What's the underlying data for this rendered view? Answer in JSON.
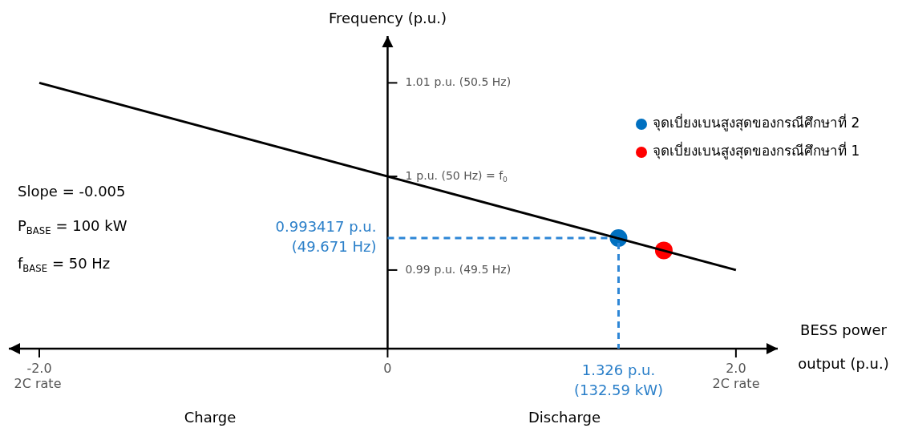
{
  "chart_data": {
    "type": "line",
    "xlabel": "BESS power output (p.u.)",
    "ylabel": "Frequency (p.u.)",
    "xlim": [
      -2.175,
      2.24
    ],
    "ylim": [
      0.9816,
      1.015
    ],
    "xticks": [
      {
        "value": -2,
        "label": "-2.0"
      },
      0,
      {
        "value": 2,
        "label": "2.0"
      }
    ],
    "yticks": [
      0.99,
      1,
      1.01
    ],
    "legend": "top right",
    "series": [
      {
        "color": "#000000",
        "x": [
          -2,
          2
        ],
        "values": [
          1.01,
          0.99
        ],
        "marker": "none",
        "line_style": "solid"
      },
      {
        "color": "#2d86d6",
        "x": [
          0,
          1.326,
          1.326
        ],
        "values": [
          0.993417,
          0.993417,
          0.9816
        ],
        "marker": "none",
        "line_style": "dashed"
      },
      {
        "type": "scatter",
        "name": "จุดเบี่ยงเบนสูงสุดของกรณีศึกษาที่ 2",
        "color": "#0070c0",
        "x": [
          1.326
        ],
        "values": [
          0.993417
        ],
        "marker": "circle"
      },
      {
        "type": "scatter",
        "name": "จุดเบี่ยงเบนสูงสุดของกรณีศึกษาที่ 1",
        "color": "#ff0000",
        "x": [
          1.586
        ],
        "values": [
          0.9921
        ],
        "marker": "circle"
      }
    ],
    "annotations": [
      "Slope = -0.005",
      "P$_{BASE}$ = 100 kW",
      "f$_{BASE}$ = 50 Hz",
      "Charge",
      "Discharge",
      {
        "text": "0.993417 p.u.\n(49.671 Hz)",
        "x": 0,
        "y": 0.993417
      },
      {
        "text": "1.326 p.u.\n(132.59 kW)",
        "x": 1.326,
        "y": 0.9816
      },
      "2C rate",
      "2C rate",
      "p.u. (49.5 Hz)",
      "p.u. (50 Hz) = f$_{0}$",
      "p.u. (50.5 Hz)"
    ]
  }
}
